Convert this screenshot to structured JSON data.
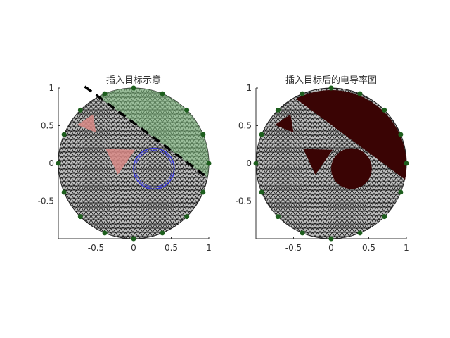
{
  "colors": {
    "mesh_fill": "#b8b8b8",
    "mesh_line": "#1a1a1a",
    "electrode": "#1d5e1d",
    "target_tri": "#d98a86",
    "target_region": "#7fbf7f",
    "circle_outline": "#3a3adf",
    "recon_dark": "#3a0404",
    "divider": "#000000"
  },
  "plots": [
    {
      "title": "插入目标示意",
      "xticks": [
        "-0.5",
        "0",
        "0.5",
        "1"
      ],
      "yticks": [
        "1",
        "0.5",
        "0",
        "-0.5"
      ],
      "electrodes": 16,
      "triangles": [
        [
          [
            -0.75,
            0.51
          ],
          [
            -0.54,
            0.65
          ],
          [
            -0.5,
            0.41
          ]
        ],
        [
          [
            -0.37,
            0.19
          ],
          [
            0.02,
            0.18
          ],
          [
            -0.21,
            -0.15
          ]
        ]
      ],
      "circle": {
        "cx": 0.27,
        "cy": -0.07,
        "r": 0.27
      },
      "divider_line": [
        [
          -0.65,
          1.02
        ],
        [
          1.0,
          -0.2
        ]
      ],
      "mode": "marked"
    },
    {
      "title": "插入目标后的电导率图",
      "xticks": [
        "-0.5",
        "0",
        "0.5",
        "1"
      ],
      "yticks": [
        "1",
        "0.5",
        "0",
        "-0.5"
      ],
      "electrodes": 16,
      "triangles": [
        [
          [
            -0.75,
            0.51
          ],
          [
            -0.54,
            0.65
          ],
          [
            -0.5,
            0.41
          ]
        ],
        [
          [
            -0.37,
            0.19
          ],
          [
            0.02,
            0.18
          ],
          [
            -0.21,
            -0.15
          ]
        ]
      ],
      "circle": {
        "cx": 0.27,
        "cy": -0.07,
        "r": 0.27
      },
      "divider_line": [
        [
          -0.65,
          1.02
        ],
        [
          1.0,
          -0.2
        ]
      ],
      "mode": "reconstructed"
    }
  ]
}
